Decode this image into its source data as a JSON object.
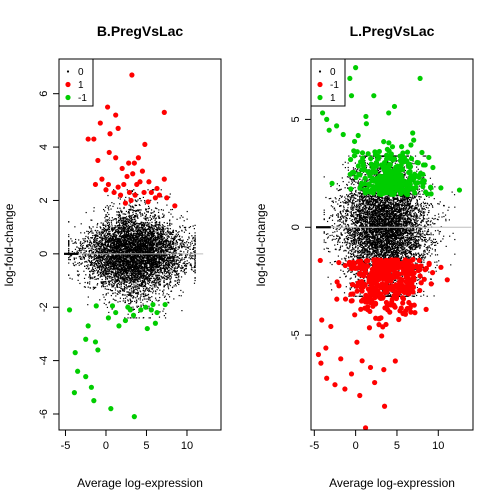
{
  "chart_data": [
    {
      "type": "scatter",
      "title": "B.PregVsLac",
      "xlabel": "Average log-expression",
      "ylabel": "log-fold-change",
      "xlim": [
        -5.8,
        14.2
      ],
      "ylim": [
        -6.6,
        7.3
      ],
      "xticks": [
        -5,
        0,
        5,
        10
      ],
      "yticks": [
        -6,
        -4,
        -2,
        0,
        2,
        4,
        6
      ],
      "legend": {
        "position": "top-left",
        "entries": [
          {
            "label": "0",
            "color": "#000000"
          },
          {
            "label": "1",
            "color": "#ff0000"
          },
          {
            "label": "-1",
            "color": "#00cd00"
          }
        ]
      },
      "background_cloud": {
        "label": "0",
        "color": "#000000",
        "x_center": 3.5,
        "x_spread": 3.0,
        "y_spread": 0.65,
        "x_range": [
          -4.6,
          11
        ],
        "y_range": [
          -2.4,
          2.4
        ],
        "point_count": 6500
      },
      "trend_line": {
        "x": [
          -5,
          12
        ],
        "y": [
          0,
          0
        ]
      },
      "series": [
        {
          "name": "1",
          "color": "#ff0000",
          "points": [
            [
              -2.2,
              4.3
            ],
            [
              -1.5,
              4.3
            ],
            [
              0.2,
              5.5
            ],
            [
              1.2,
              5.2
            ],
            [
              3.2,
              6.7
            ],
            [
              7.2,
              5.3
            ],
            [
              -0.7,
              4.9
            ],
            [
              0.5,
              4.5
            ],
            [
              4.8,
              4.1
            ],
            [
              1.5,
              4.7
            ],
            [
              -1,
              3.5
            ],
            [
              0.4,
              3.8
            ],
            [
              1.2,
              3.6
            ],
            [
              2.8,
              3.4
            ],
            [
              3.5,
              3.4
            ],
            [
              2,
              3.2
            ],
            [
              2.6,
              2.9
            ],
            [
              3.3,
              3
            ],
            [
              4.5,
              3.1
            ],
            [
              -0.5,
              2.8
            ],
            [
              0.3,
              2.6
            ],
            [
              1.5,
              2.5
            ],
            [
              2.2,
              2.6
            ],
            [
              3.8,
              2.6
            ],
            [
              4.2,
              2.7
            ],
            [
              5.3,
              2.7
            ],
            [
              -1.3,
              2.6
            ],
            [
              0,
              2.4
            ],
            [
              1,
              2.3
            ],
            [
              1.8,
              2.2
            ],
            [
              2.9,
              2.3
            ],
            [
              3.6,
              2.2
            ],
            [
              4.7,
              2.3
            ],
            [
              5.6,
              2.3
            ],
            [
              6.1,
              2.1
            ],
            [
              6.6,
              2.2
            ],
            [
              7.5,
              2.1
            ],
            [
              8.5,
              1.8
            ],
            [
              7.2,
              2.8
            ],
            [
              4,
              3.6
            ],
            [
              2.4,
              1.9
            ],
            [
              3.1,
              2
            ],
            [
              5.2,
              1.95
            ],
            [
              6.3,
              2.45
            ]
          ]
        },
        {
          "name": "-1",
          "color": "#00cd00",
          "points": [
            [
              -4.5,
              -2.1
            ],
            [
              -2.2,
              -2.7
            ],
            [
              -1.3,
              -3.3
            ],
            [
              0.3,
              -2.4
            ],
            [
              1.2,
              -2.2
            ],
            [
              2.7,
              -2
            ],
            [
              3.4,
              -2.3
            ],
            [
              4.3,
              -2.1
            ],
            [
              4.9,
              -2
            ],
            [
              5.6,
              -2.1
            ],
            [
              6.3,
              -2.2
            ],
            [
              7.3,
              -1.9
            ],
            [
              2.4,
              -2.5
            ],
            [
              3,
              -2.1
            ],
            [
              5.1,
              -2.8
            ],
            [
              6.1,
              -2.6
            ],
            [
              0.8,
              -1.95
            ],
            [
              1.6,
              -2.7
            ],
            [
              -1.2,
              -1.95
            ],
            [
              -3.8,
              -3.7
            ],
            [
              -3.5,
              -4.4
            ],
            [
              -3.9,
              -5.2
            ],
            [
              -2.5,
              -4.6
            ],
            [
              -1.8,
              -5
            ],
            [
              -1.5,
              -5.5
            ],
            [
              -1,
              -3.6
            ],
            [
              0.6,
              -5.8
            ],
            [
              3.5,
              -6.1
            ],
            [
              -2.5,
              -3.2
            ],
            [
              5.8,
              -1.9
            ]
          ]
        }
      ]
    },
    {
      "type": "scatter",
      "title": "L.PregVsLac",
      "xlabel": "Average log-expression",
      "ylabel": "log-fold-change",
      "xlim": [
        -5.4,
        14.2
      ],
      "ylim": [
        -9.4,
        7.8
      ],
      "xticks": [
        -5,
        0,
        5,
        10
      ],
      "yticks": [
        -5,
        0,
        5
      ],
      "legend": {
        "position": "top-left",
        "entries": [
          {
            "label": "0",
            "color": "#000000"
          },
          {
            "label": "-1",
            "color": "#ff0000"
          },
          {
            "label": "1",
            "color": "#00cd00"
          }
        ]
      },
      "background_cloud": {
        "label": "0",
        "color": "#000000",
        "x_center": 3.5,
        "x_spread": 2.5,
        "y_spread": 1.3,
        "x_range": [
          -3.8,
          12
        ],
        "y_range": [
          -3.2,
          3.3
        ],
        "point_count": 7000
      },
      "trend_line": {
        "x": [
          -4.5,
          14
        ],
        "y": [
          0,
          0
        ]
      },
      "series": [
        {
          "name": "-1",
          "color": "#ff0000",
          "region": {
            "x_center": 3.5,
            "x_spread": 2.4,
            "y_top": -1.5,
            "y_scale": 1.6,
            "count": 420
          },
          "points": [
            [
              -4.5,
              -5.9
            ],
            [
              -4.2,
              -6.3
            ],
            [
              -3.5,
              -7
            ],
            [
              -3.6,
              -5.6
            ],
            [
              -2.5,
              -7.3
            ],
            [
              -1.8,
              -6.1
            ],
            [
              -1.3,
              -7.5
            ],
            [
              -0.5,
              -6.8
            ],
            [
              0.5,
              -7.8
            ],
            [
              1.2,
              -9.3
            ],
            [
              3.5,
              -8.3
            ],
            [
              2.3,
              -7.2
            ],
            [
              1.8,
              -6.5
            ],
            [
              4.8,
              -6.2
            ],
            [
              -3,
              -4.6
            ],
            [
              -4.1,
              -4.3
            ]
          ]
        },
        {
          "name": "1",
          "color": "#00cd00",
          "region": {
            "x_center": 4.5,
            "x_spread": 2.3,
            "y_bottom": 1.5,
            "y_scale": 1.3,
            "count": 300
          },
          "points": [
            [
              0,
              7.4
            ],
            [
              -0.7,
              6.9
            ],
            [
              -0.5,
              6.1
            ],
            [
              2.2,
              6.1
            ],
            [
              7.8,
              6.9
            ],
            [
              4,
              5.3
            ],
            [
              4.7,
              5.6
            ],
            [
              -4,
              5.3
            ],
            [
              -3.5,
              5
            ],
            [
              -3.2,
              4.5
            ],
            [
              -2.3,
              4.7
            ],
            [
              -1.5,
              4.3
            ],
            [
              0.2,
              3.5
            ],
            [
              1.3,
              4.8
            ]
          ]
        }
      ]
    }
  ]
}
